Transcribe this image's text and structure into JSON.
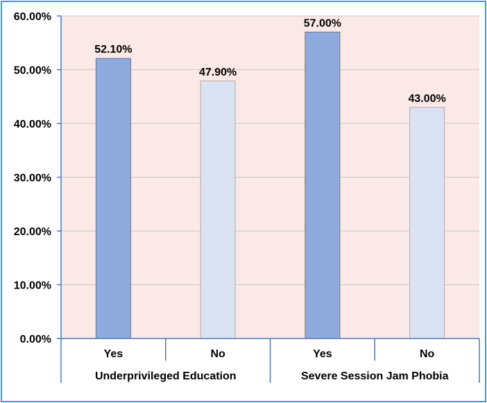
{
  "chart_data": {
    "type": "bar",
    "title": "",
    "xlabel": "",
    "ylabel": "",
    "ylim": [
      0,
      60
    ],
    "y_ticks": [
      0,
      10,
      20,
      30,
      40,
      50,
      60
    ],
    "y_tick_labels": [
      "0.00%",
      "10.00%",
      "20.00%",
      "30.00%",
      "40.00%",
      "50.00%",
      "60.00%"
    ],
    "grid": true,
    "legend": "none",
    "groups": [
      {
        "name": "Underprivileged Education",
        "bars": [
          {
            "category": "Yes",
            "value": 52.1,
            "label": "52.10%",
            "color": "#8faadc"
          },
          {
            "category": "No",
            "value": 47.9,
            "label": "47.90%",
            "color": "#dae3f3"
          }
        ]
      },
      {
        "name": "Severe Session Jam Phobia",
        "bars": [
          {
            "category": "Yes",
            "value": 57.0,
            "label": "57.00%",
            "color": "#8faadc"
          },
          {
            "category": "No",
            "value": 43.0,
            "label": "43.00%",
            "color": "#dae3f3"
          }
        ]
      }
    ],
    "colors": {
      "frame": "#1fa7d8",
      "plot_background": "#fbe9e7",
      "gridline": "#c8c8c8",
      "axis": "#4a78c2",
      "bar_edge": "#6b7280",
      "bar_edge_light": "#c8a49a"
    }
  }
}
